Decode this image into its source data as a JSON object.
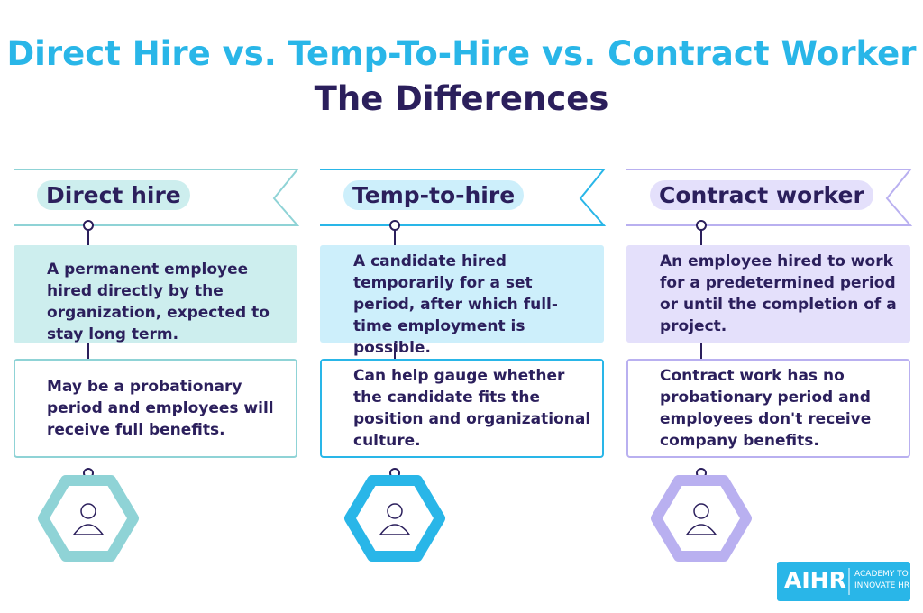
{
  "title": {
    "line1": "Direct Hire vs. Temp-To-Hire vs. Contract Worker",
    "line2": "The Differences"
  },
  "columns": [
    {
      "label": "Direct hire",
      "definition": "A permanent employee hired directly by the organization, expected to stay long term.",
      "note": "May be a probationary period and employees will receive full benefits."
    },
    {
      "label": "Temp-to-hire",
      "definition": "A candidate hired temporarily for a set period, after which full-time employment is possible.",
      "note": "Can help gauge whether the candidate fits the position and organizational culture."
    },
    {
      "label": "Contract worker",
      "definition": "An employee hired to work for a predetermined period or until the completion of a project.",
      "note": "Contract work has no probationary period and employees don't receive company benefits."
    }
  ],
  "logo": {
    "brand": "AIHR",
    "tagline": [
      "ACADEMY TO",
      "INNOVATE HR"
    ]
  }
}
